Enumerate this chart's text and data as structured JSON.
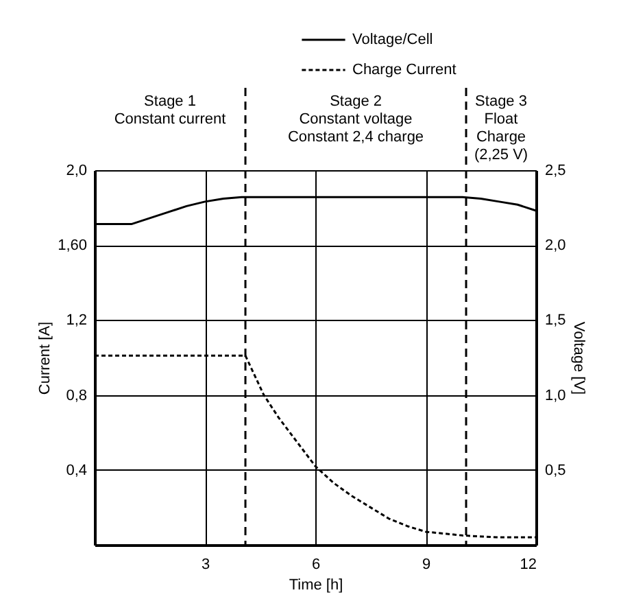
{
  "chart_data": {
    "type": "line",
    "xlabel": "Time [h]",
    "ylabel": "Current [A]",
    "y2label": "Voltage [V]",
    "xlim": [
      0,
      12
    ],
    "xticks": [
      3,
      6,
      9,
      12
    ],
    "ylim": [
      0,
      2.0
    ],
    "yticks": [
      {
        "value": 0.4,
        "label": "0,4"
      },
      {
        "value": 0.8,
        "label": "0,8"
      },
      {
        "value": 1.2,
        "label": "1,2"
      },
      {
        "value": 1.6,
        "label": "1,60"
      },
      {
        "value": 2.0,
        "label": "2,0"
      }
    ],
    "y2lim": [
      0,
      2.5
    ],
    "y2ticks": [
      {
        "value": 0.5,
        "label": "0,5"
      },
      {
        "value": 1.0,
        "label": "1,0"
      },
      {
        "value": 1.5,
        "label": "1,5"
      },
      {
        "value": 2.0,
        "label": "2,0"
      },
      {
        "value": 2.5,
        "label": "2,5"
      }
    ],
    "grid": true,
    "legend": "top right",
    "marker": "none",
    "series": [
      {
        "name": "Voltage/Cell",
        "color": "#000000",
        "axis": "y2",
        "line_style": "solid",
        "x": [
          0,
          1,
          1.5,
          2,
          2.5,
          3,
          3.5,
          4,
          10,
          10.5,
          11,
          11.5,
          12
        ],
        "values": [
          2.14,
          2.14,
          2.18,
          2.22,
          2.26,
          2.29,
          2.31,
          2.32,
          2.32,
          2.31,
          2.29,
          2.27,
          2.23
        ]
      },
      {
        "name": "Charge Current",
        "color": "#000000",
        "axis": "y",
        "line_style": "dotted",
        "x": [
          0,
          4.1,
          4.6,
          5,
          5.5,
          6,
          6.5,
          7,
          7.5,
          8,
          8.5,
          9,
          10,
          11,
          12
        ],
        "values": [
          1.01,
          1.01,
          0.8,
          0.68,
          0.55,
          0.42,
          0.33,
          0.26,
          0.2,
          0.14,
          0.1,
          0.07,
          0.05,
          0.04,
          0.04
        ]
      }
    ],
    "ref_lines": [
      {
        "axis": "x",
        "value": 4.1,
        "line_style": "dashed",
        "color": "#000000"
      },
      {
        "axis": "x",
        "value": 10.1,
        "line_style": "dashed",
        "color": "#000000"
      }
    ],
    "annotations": [
      "Stage 1\nConstant current",
      "Stage 2\nConstant voltage\nConstant 2,4 charge",
      "Stage 3\nFloat\nCharge\n(2,25 V)"
    ]
  }
}
